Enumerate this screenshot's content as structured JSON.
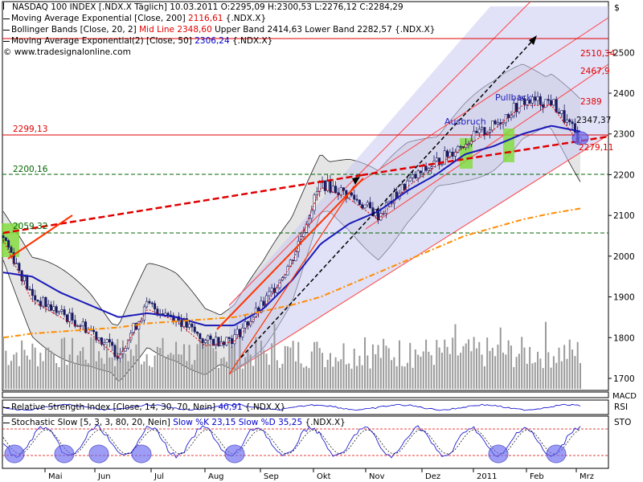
{
  "header": {
    "title": "NASDAQ 100 INDEX [.NDX.X  Täglich] 10.03.2011 O:2295,09 H:2300,53 L:2276,12 C:2284,29",
    "ema200": "Moving Average Exponential [Close, 200]",
    "ema200_value": "2116,61",
    "ema200_suffix": "{.NDX.X}",
    "bb_prefix": "Bollinger Bands [Close, 20, 2]",
    "bb_mid": "Mid Line 2348,60",
    "bb_rest": "Upper Band 2414,63 Lower Band 2282,57 {.NDX.X}",
    "ema50": "Moving Average Exponential(2) [Close, 50]",
    "ema50_value": "2306,24",
    "ema50_suffix": "{.NDX.X}",
    "website": "www.tradesignalonline.com",
    "currency": "$"
  },
  "level_labels": {
    "l2299": "2299,13",
    "l2200": "2200,16",
    "l2059": "2059,32",
    "l2510": "2510,34",
    "l2467": "2467,9",
    "l2389": "2389",
    "l2347": "2347,37",
    "l2279": "2279,11",
    "ausbruch": "Ausbruch",
    "pullback": "Pullback"
  },
  "lower_panels": {
    "macd_label": "MACD",
    "rsi_title": "Relative Strength Index [Close, 14, 30, 70, Nein]",
    "rsi_value": "40,91",
    "rsi_suffix": "{.NDX.X}",
    "rsi_label": "RSI",
    "stoch_title": "Stochastic Slow [5, 3, 3, 80, 20, Nein]",
    "stoch_k": "Slow %K 23,15",
    "stoch_d": "Slow %D 35,25",
    "stoch_suffix": "{.NDX.X}",
    "stoch_label": "STO"
  },
  "chart_data": {
    "type": "line",
    "title": "NASDAQ 100 INDEX",
    "y_axis": {
      "ticks": [
        1700,
        1800,
        1900,
        2000,
        2100,
        2200,
        2300,
        2400,
        2500
      ],
      "range": [
        1670,
        2570
      ]
    },
    "x_ticks": [
      "Mai",
      "Jun",
      "Jul",
      "Aug",
      "Sep",
      "Okt",
      "Nov",
      "Dez",
      "2011",
      "Feb",
      "Mrz"
    ],
    "horizontal_levels": [
      {
        "value": 2299.13,
        "label": "2299,13",
        "style": "solid red"
      },
      {
        "value": 2200.16,
        "label": "2200,16",
        "style": "dashed green"
      },
      {
        "value": 2059.32,
        "label": "2059,32",
        "style": "dashed green"
      }
    ],
    "series": [
      {
        "name": "NASDAQ 100 INDEX",
        "color": "#1a1aaa",
        "x": [
          "Mai",
          "Mai",
          "Jun",
          "Jun",
          "Jul",
          "Jul",
          "Aug",
          "Aug",
          "Sep",
          "Sep",
          "Okt",
          "Okt",
          "Nov",
          "Nov",
          "Dez",
          "Dez",
          "2011",
          "2011",
          "Feb",
          "Feb",
          "Mrz"
        ],
        "values": [
          2050,
          1900,
          1860,
          1820,
          1760,
          1880,
          1850,
          1790,
          1800,
          1880,
          1990,
          2180,
          2150,
          2100,
          2180,
          2230,
          2280,
          2320,
          2380,
          2380,
          2284
        ]
      },
      {
        "name": "Moving Average Exponential(2) [Close, 50]",
        "color": "#1a1ab8",
        "values": [
          1960,
          1950,
          1910,
          1880,
          1850,
          1860,
          1850,
          1830,
          1830,
          1870,
          1940,
          2030,
          2080,
          2110,
          2160,
          2200,
          2250,
          2270,
          2300,
          2320,
          2306
        ]
      },
      {
        "name": "Moving Average Exponential [Close, 200]",
        "color": "#ff8c00",
        "values": [
          1800,
          1810,
          1815,
          1820,
          1825,
          1835,
          1840,
          1845,
          1850,
          1865,
          1880,
          1900,
          1930,
          1960,
          1990,
          2020,
          2050,
          2070,
          2090,
          2105,
          2117
        ]
      }
    ]
  }
}
